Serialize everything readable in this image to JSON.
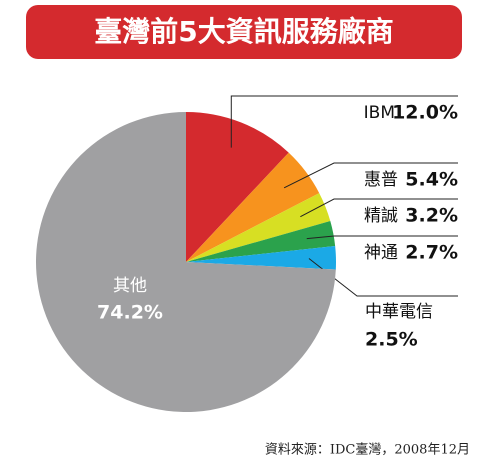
{
  "chart_data": {
    "type": "pie",
    "title": "臺灣前5大資訊服務廠商",
    "source": "資料來源：IDC臺灣，2008年12月",
    "categories": [
      "IBM",
      "惠普",
      "精誠",
      "神通",
      "中華電信",
      "其他"
    ],
    "values": [
      12.0,
      5.4,
      3.2,
      2.7,
      2.5,
      74.2
    ],
    "value_labels": [
      "12.0%",
      "5.4%",
      "3.2%",
      "2.7%",
      "2.5%",
      "74.2%"
    ],
    "colors": [
      "#d42a2e",
      "#f7931e",
      "#d7df23",
      "#2ba24c",
      "#1ba9e6",
      "#a0a0a2"
    ]
  }
}
